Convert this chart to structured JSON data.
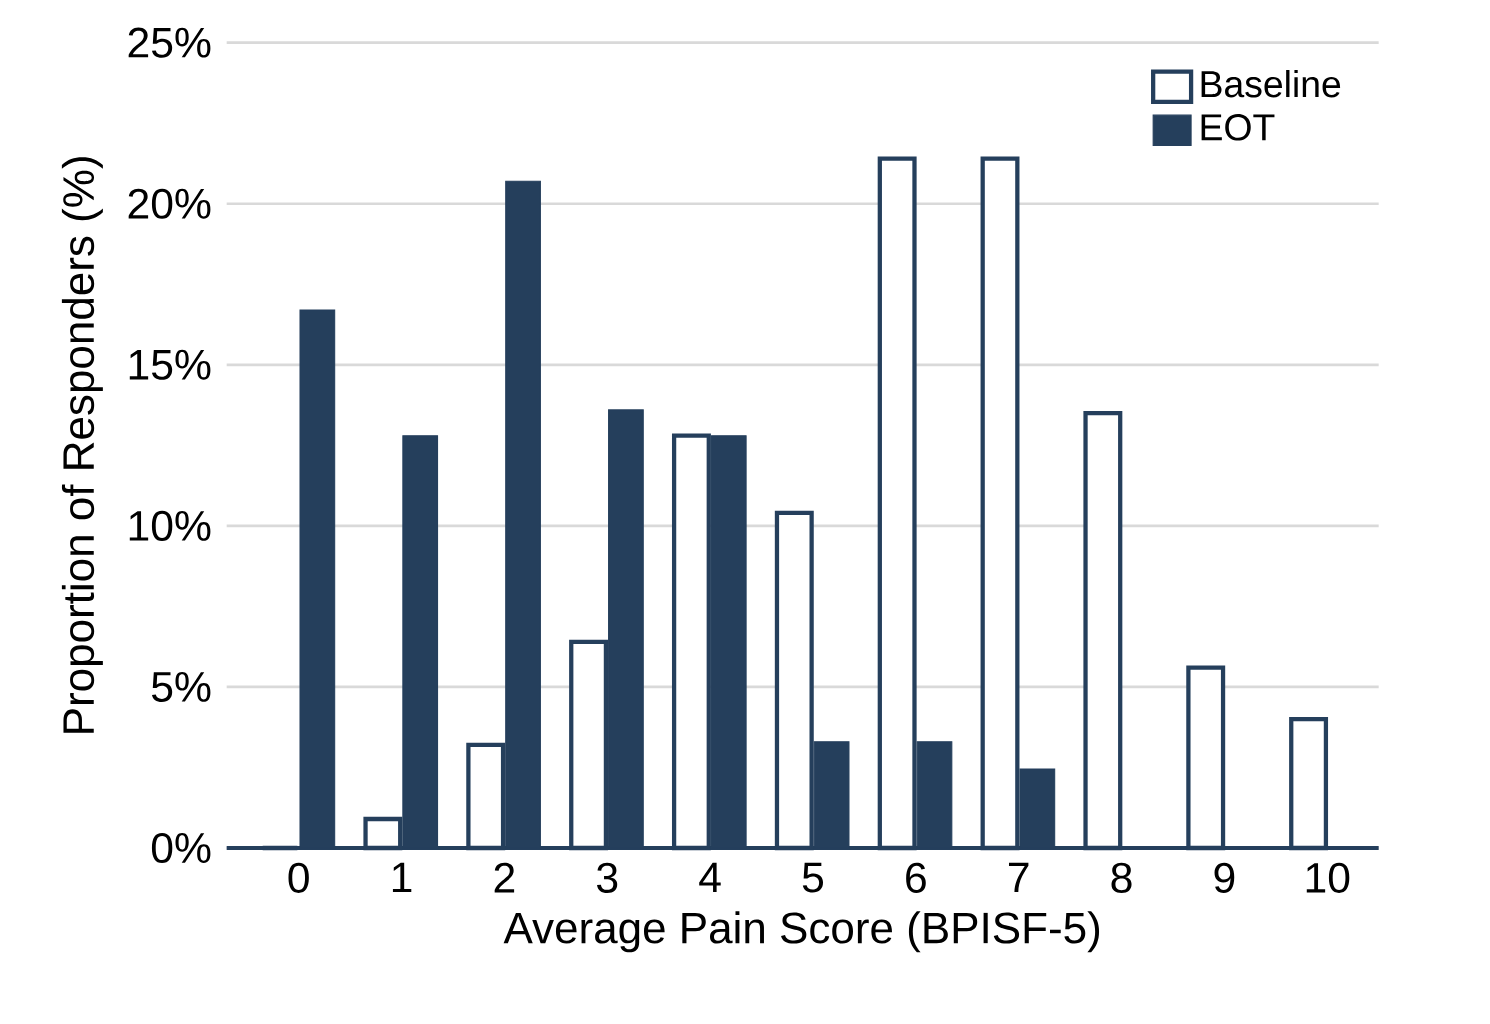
{
  "chart_data": {
    "type": "bar",
    "xlabel": "Average Pain Score (BPISF-5)",
    "ylabel": "Proportion of Responders (%)",
    "categories": [
      "0",
      "1",
      "2",
      "3",
      "4",
      "5",
      "6",
      "7",
      "8",
      "9",
      "10"
    ],
    "series": [
      {
        "name": "Baseline",
        "color": "#253f5c",
        "values": [
          0,
          0.9,
          3.2,
          6.4,
          12.8,
          10.4,
          21.4,
          21.4,
          13.5,
          5.6,
          4.0
        ]
      },
      {
        "name": "EOT",
        "color": "#253f5c",
        "values": [
          16.7,
          12.8,
          20.7,
          13.6,
          12.8,
          3.3,
          3.3,
          2.45,
          0,
          0,
          0
        ]
      }
    ],
    "ylim": [
      0,
      25
    ],
    "yticks": [
      {
        "value": 0,
        "label": "0%"
      },
      {
        "value": 5,
        "label": "5%"
      },
      {
        "value": 10,
        "label": "10%"
      },
      {
        "value": 15,
        "label": "15%"
      },
      {
        "value": 20,
        "label": "20%"
      },
      {
        "value": 25,
        "label": "25%"
      }
    ],
    "grid": "y",
    "legend": "top right"
  }
}
